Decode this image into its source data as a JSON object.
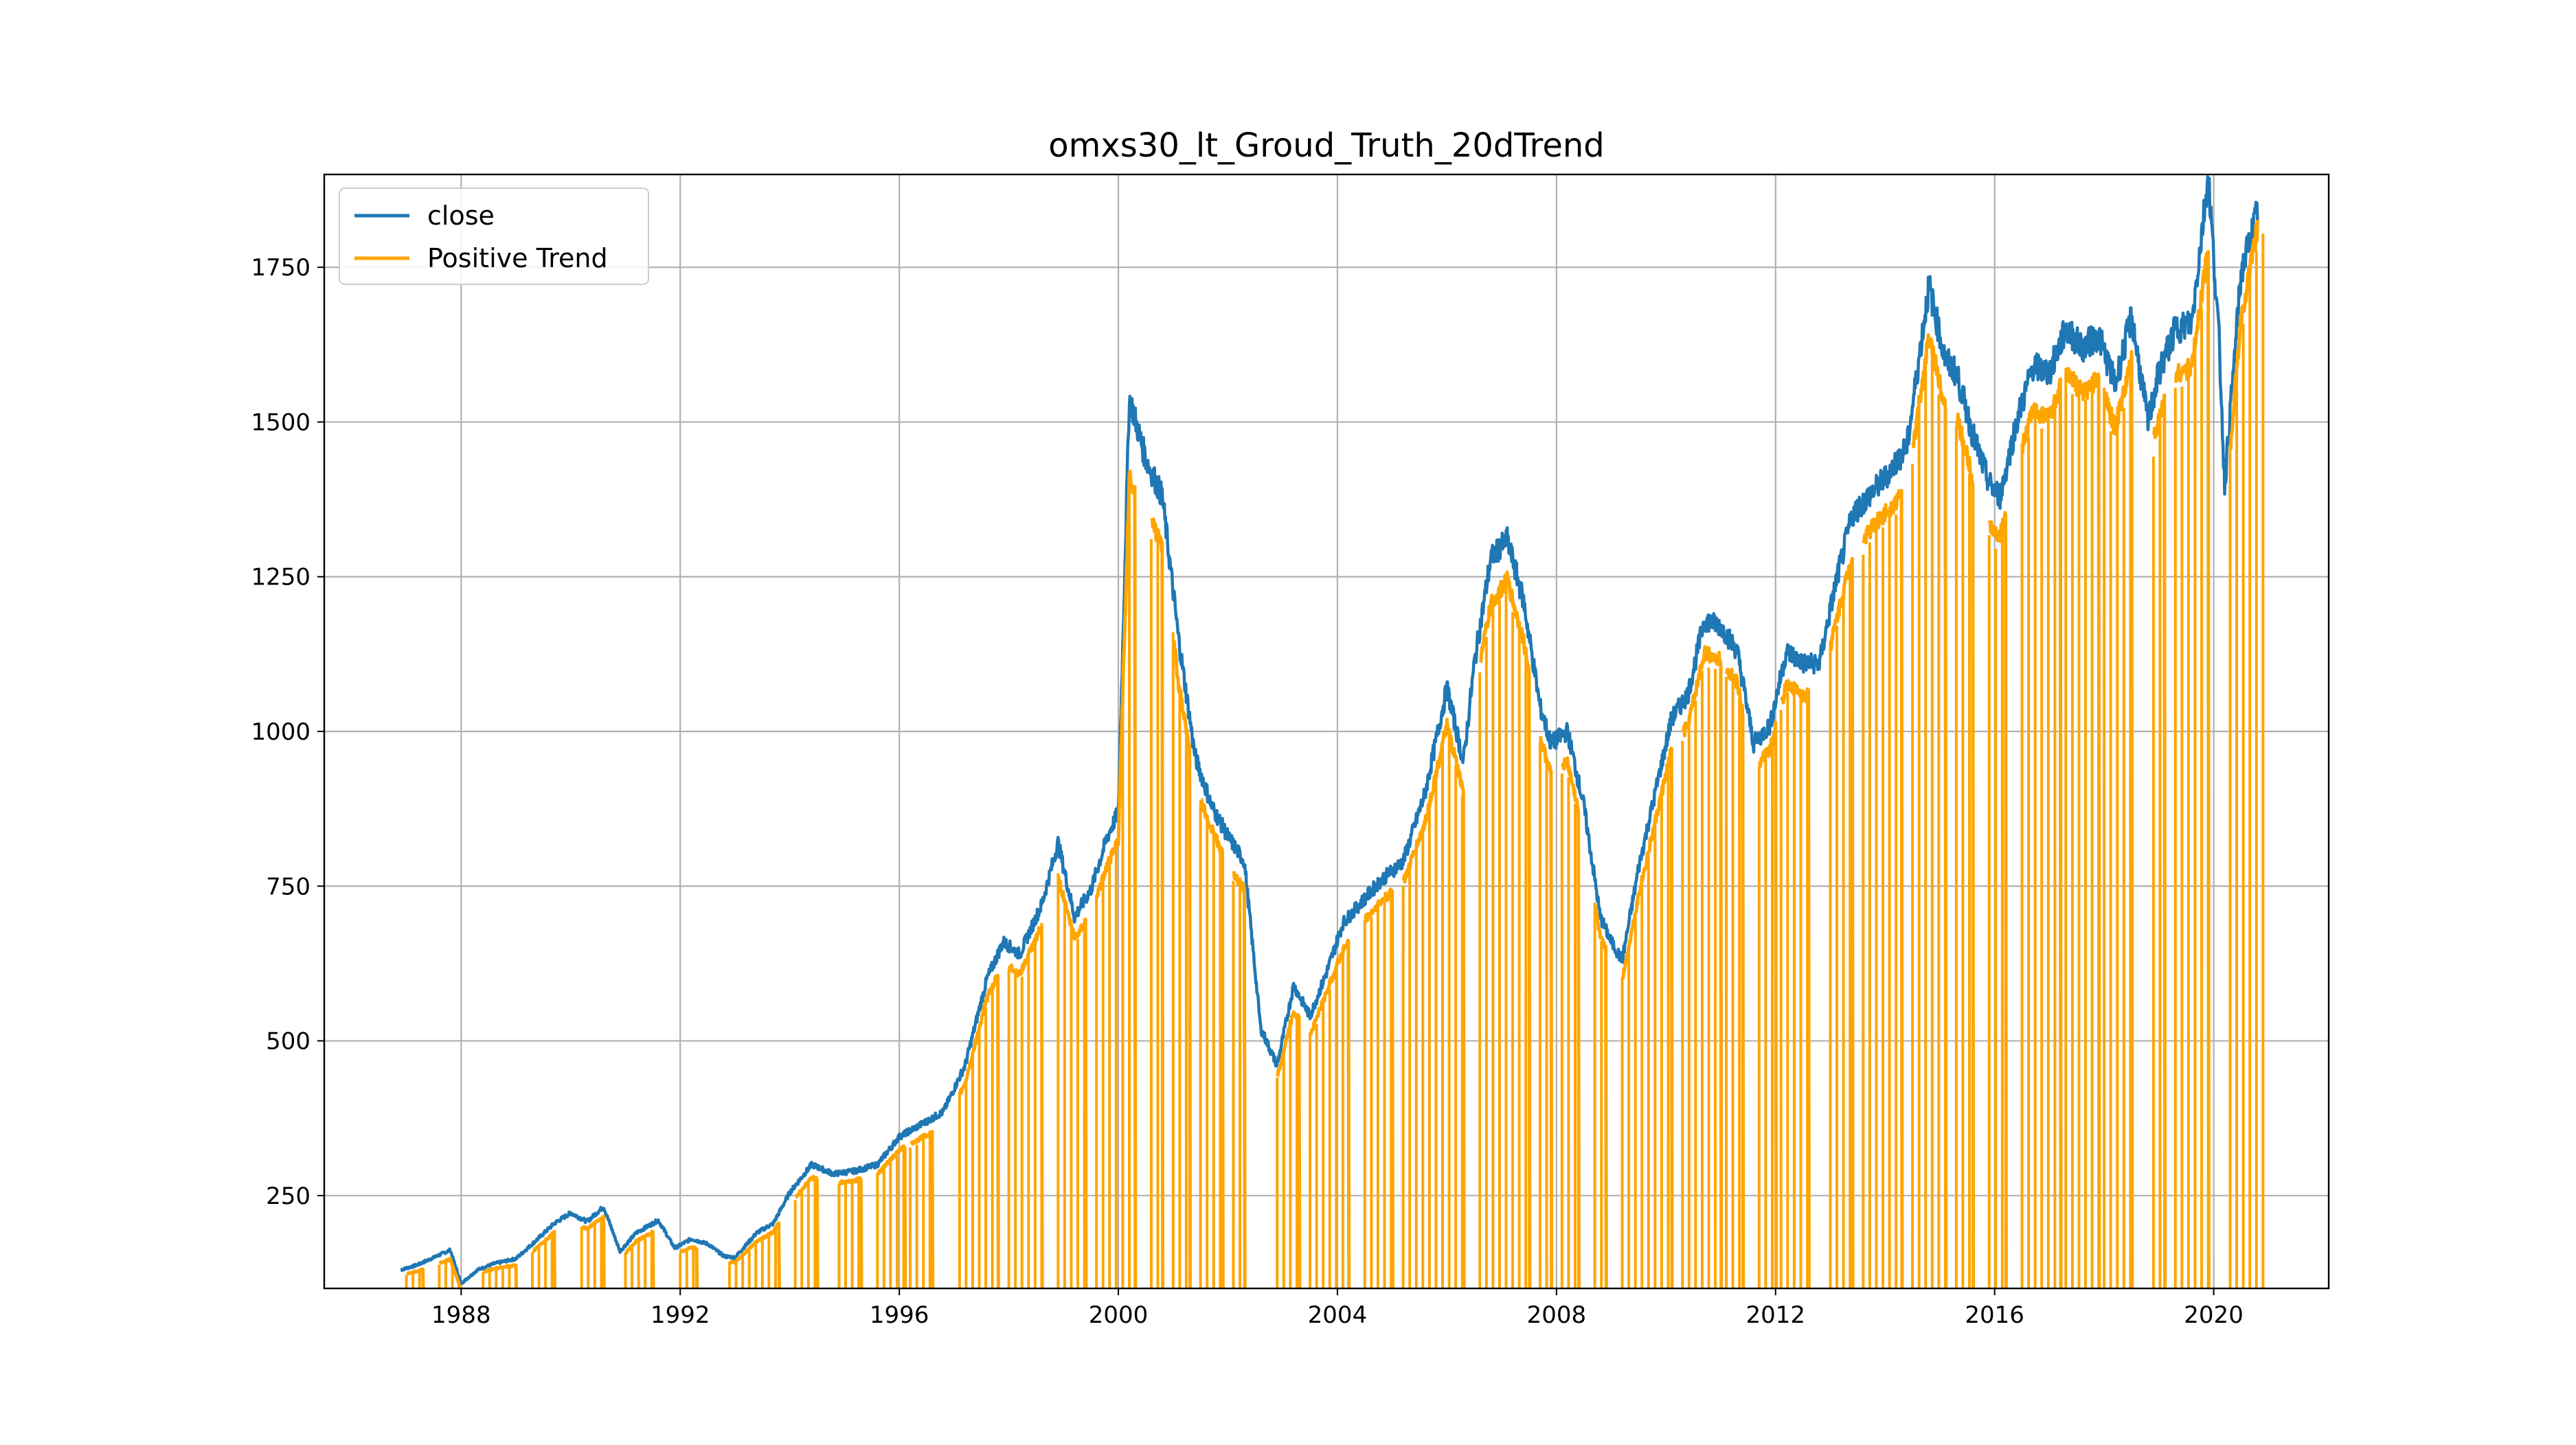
{
  "chart_data": {
    "type": "line",
    "title": "omxs30_lt_Groud_Truth_20dTrend",
    "xlabel": "",
    "ylabel": "",
    "xlim": [
      1985.5,
      2022.1
    ],
    "ylim": [
      100,
      1900
    ],
    "x_ticks": [
      1988,
      1992,
      1996,
      2000,
      2004,
      2008,
      2012,
      2016,
      2020
    ],
    "x_tick_labels": [
      "1988",
      "1992",
      "1996",
      "2000",
      "2004",
      "2008",
      "2012",
      "2016",
      "2020"
    ],
    "y_ticks": [
      250,
      500,
      750,
      1000,
      1250,
      1500,
      1750
    ],
    "y_tick_labels": [
      "250",
      "500",
      "750",
      "1000",
      "1250",
      "1500",
      "1750"
    ],
    "grid": true,
    "legend_position": "top-left",
    "series": [
      {
        "name": "close",
        "color": "#1f77b4",
        "x": [
          1986.9,
          1987.2,
          1987.5,
          1987.8,
          1988.0,
          1988.3,
          1988.6,
          1989.0,
          1989.4,
          1989.7,
          1990.0,
          1990.3,
          1990.6,
          1990.9,
          1991.2,
          1991.6,
          1991.9,
          1992.2,
          1992.5,
          1992.8,
          1993.0,
          1993.4,
          1993.7,
          1994.0,
          1994.4,
          1994.8,
          1995.2,
          1995.6,
          1996.0,
          1996.4,
          1996.8,
          1997.2,
          1997.6,
          1997.9,
          1998.2,
          1998.6,
          1998.9,
          1999.2,
          1999.5,
          1999.8,
          2000.0,
          2000.2,
          2000.5,
          2000.8,
          2001.1,
          2001.4,
          2001.7,
          2002.0,
          2002.3,
          2002.6,
          2002.9,
          2003.2,
          2003.5,
          2003.8,
          2004.1,
          2004.4,
          2004.8,
          2005.2,
          2005.6,
          2006.0,
          2006.3,
          2006.5,
          2006.8,
          2007.1,
          2007.4,
          2007.7,
          2007.9,
          2008.2,
          2008.5,
          2008.8,
          2009.0,
          2009.2,
          2009.5,
          2009.8,
          2010.1,
          2010.4,
          2010.7,
          2011.0,
          2011.3,
          2011.6,
          2011.9,
          2012.2,
          2012.5,
          2012.8,
          2013.1,
          2013.4,
          2013.7,
          2014.0,
          2014.4,
          2014.8,
          2015.1,
          2015.3,
          2015.6,
          2015.9,
          2016.1,
          2016.4,
          2016.7,
          2017.0,
          2017.3,
          2017.6,
          2017.9,
          2018.2,
          2018.5,
          2018.8,
          2019.0,
          2019.3,
          2019.6,
          2019.9,
          2020.1,
          2020.2,
          2020.5,
          2020.8
        ],
        "y": [
          130,
          138,
          150,
          162,
          108,
          130,
          140,
          148,
          180,
          205,
          222,
          208,
          232,
          160,
          190,
          210,
          165,
          180,
          172,
          152,
          150,
          190,
          205,
          255,
          300,
          285,
          290,
          300,
          345,
          365,
          385,
          460,
          600,
          660,
          640,
          720,
          820,
          700,
          745,
          830,
          870,
          1540,
          1440,
          1380,
          1150,
          960,
          880,
          830,
          790,
          520,
          460,
          590,
          540,
          610,
          690,
          720,
          760,
          790,
          900,
          1070,
          950,
          1110,
          1280,
          1310,
          1210,
          1040,
          980,
          1000,
          880,
          700,
          660,
          630,
          780,
          900,
          1020,
          1060,
          1180,
          1170,
          1130,
          980,
          1010,
          1130,
          1110,
          1110,
          1240,
          1350,
          1380,
          1410,
          1460,
          1720,
          1600,
          1580,
          1480,
          1400,
          1380,
          1500,
          1590,
          1580,
          1650,
          1620,
          1640,
          1560,
          1670,
          1500,
          1580,
          1650,
          1660,
          1900,
          1630,
          1400,
          1740,
          1840
        ]
      },
      {
        "name": "Positive Trend",
        "color": "#ffa500",
        "x": [
          1986.9,
          1987.2,
          1987.5,
          1987.8,
          1988.0,
          1988.3,
          1988.6,
          1989.0,
          1989.4,
          1989.7,
          1990.0,
          1990.3,
          1990.6,
          1990.9,
          1991.2,
          1991.6,
          1991.9,
          1992.2,
          1992.5,
          1992.8,
          1993.0,
          1993.4,
          1993.7,
          1994.0,
          1994.4,
          1994.8,
          1995.2,
          1995.6,
          1996.0,
          1996.4,
          1996.8,
          1997.2,
          1997.6,
          1997.9,
          1998.2,
          1998.6,
          1998.9,
          1999.2,
          1999.5,
          1999.8,
          2000.0,
          2000.2,
          2000.5,
          2000.8,
          2001.1,
          2001.4,
          2001.7,
          2002.0,
          2002.3,
          2002.6,
          2002.9,
          2003.2,
          2003.5,
          2003.8,
          2004.1,
          2004.4,
          2004.8,
          2005.2,
          2005.6,
          2006.0,
          2006.3,
          2006.5,
          2006.8,
          2007.1,
          2007.4,
          2007.7,
          2007.9,
          2008.2,
          2008.5,
          2008.8,
          2009.0,
          2009.2,
          2009.5,
          2009.8,
          2010.1,
          2010.4,
          2010.7,
          2011.0,
          2011.3,
          2011.6,
          2011.9,
          2012.2,
          2012.5,
          2012.8,
          2013.1,
          2013.4,
          2013.7,
          2014.0,
          2014.4,
          2014.8,
          2015.1,
          2015.3,
          2015.6,
          2015.9,
          2016.1,
          2016.4,
          2016.7,
          2017.0,
          2017.3,
          2017.6,
          2017.9,
          2018.2,
          2018.5,
          2018.8,
          2019.0,
          2019.3,
          2019.6,
          2019.9,
          2020.1,
          2020.2,
          2020.5,
          2020.8
        ],
        "y": [
          125,
          130,
          140,
          150,
          100,
          125,
          135,
          140,
          170,
          195,
          210,
          200,
          220,
          150,
          180,
          200,
          158,
          170,
          165,
          145,
          145,
          180,
          195,
          240,
          285,
          275,
          280,
          290,
          330,
          350,
          370,
          440,
          580,
          640,
          620,
          700,
          780,
          680,
          720,
          800,
          840,
          1440,
          1380,
          1330,
          1100,
          930,
          860,
          800,
          760,
          500,
          450,
          560,
          520,
          590,
          660,
          700,
          740,
          770,
          870,
          1030,
          920,
          1080,
          1230,
          1270,
          1170,
          1010,
          950,
          970,
          850,
          680,
          640,
          610,
          750,
          870,
          990,
          1030,
          1150,
          1140,
          1100,
          960,
          990,
          1100,
          1080,
          1080,
          1200,
          1310,
          1350,
          1380,
          1420,
          1670,
          1560,
          1540,
          1440,
          1360,
          1340,
          1460,
          1550,
          1540,
          1610,
          1580,
          1600,
          1520,
          1630,
          1460,
          1540,
          1610,
          1620,
          1820,
          1590,
          1380,
          1700,
          1850
        ]
      }
    ],
    "trend_intervals": [
      [
        1987.0,
        1987.3
      ],
      [
        1987.6,
        1988.0
      ],
      [
        1988.4,
        1989.0
      ],
      [
        1989.3,
        1989.7
      ],
      [
        1990.2,
        1990.6
      ],
      [
        1991.0,
        1991.5
      ],
      [
        1992.0,
        1992.3
      ],
      [
        1992.9,
        1993.8
      ],
      [
        1994.1,
        1994.5
      ],
      [
        1994.9,
        1995.3
      ],
      [
        1995.6,
        1996.1
      ],
      [
        1996.2,
        1996.6
      ],
      [
        1997.1,
        1997.8
      ],
      [
        1998.0,
        1998.6
      ],
      [
        1998.9,
        1999.4
      ],
      [
        1999.6,
        2000.3
      ],
      [
        2000.6,
        2000.8
      ],
      [
        2001.0,
        2001.3
      ],
      [
        2001.5,
        2001.9
      ],
      [
        2002.1,
        2002.3
      ],
      [
        2002.9,
        2003.3
      ],
      [
        2003.5,
        2004.2
      ],
      [
        2004.5,
        2005.0
      ],
      [
        2005.2,
        2006.3
      ],
      [
        2006.6,
        2007.5
      ],
      [
        2007.7,
        2007.9
      ],
      [
        2008.1,
        2008.4
      ],
      [
        2008.7,
        2008.9
      ],
      [
        2009.2,
        2010.1
      ],
      [
        2010.3,
        2011.0
      ],
      [
        2011.1,
        2011.4
      ],
      [
        2011.7,
        2012.0
      ],
      [
        2012.1,
        2012.6
      ],
      [
        2013.0,
        2013.4
      ],
      [
        2013.6,
        2014.3
      ],
      [
        2014.5,
        2015.1
      ],
      [
        2015.3,
        2015.6
      ],
      [
        2015.9,
        2016.2
      ],
      [
        2016.5,
        2017.2
      ],
      [
        2017.3,
        2017.9
      ],
      [
        2018.0,
        2018.5
      ],
      [
        2018.9,
        2019.1
      ],
      [
        2019.3,
        2019.9
      ],
      [
        2020.3,
        2020.9
      ]
    ],
    "legend": [
      {
        "label": "close",
        "color": "#1f77b4"
      },
      {
        "label": "Positive Trend",
        "color": "#ffa500"
      }
    ]
  }
}
